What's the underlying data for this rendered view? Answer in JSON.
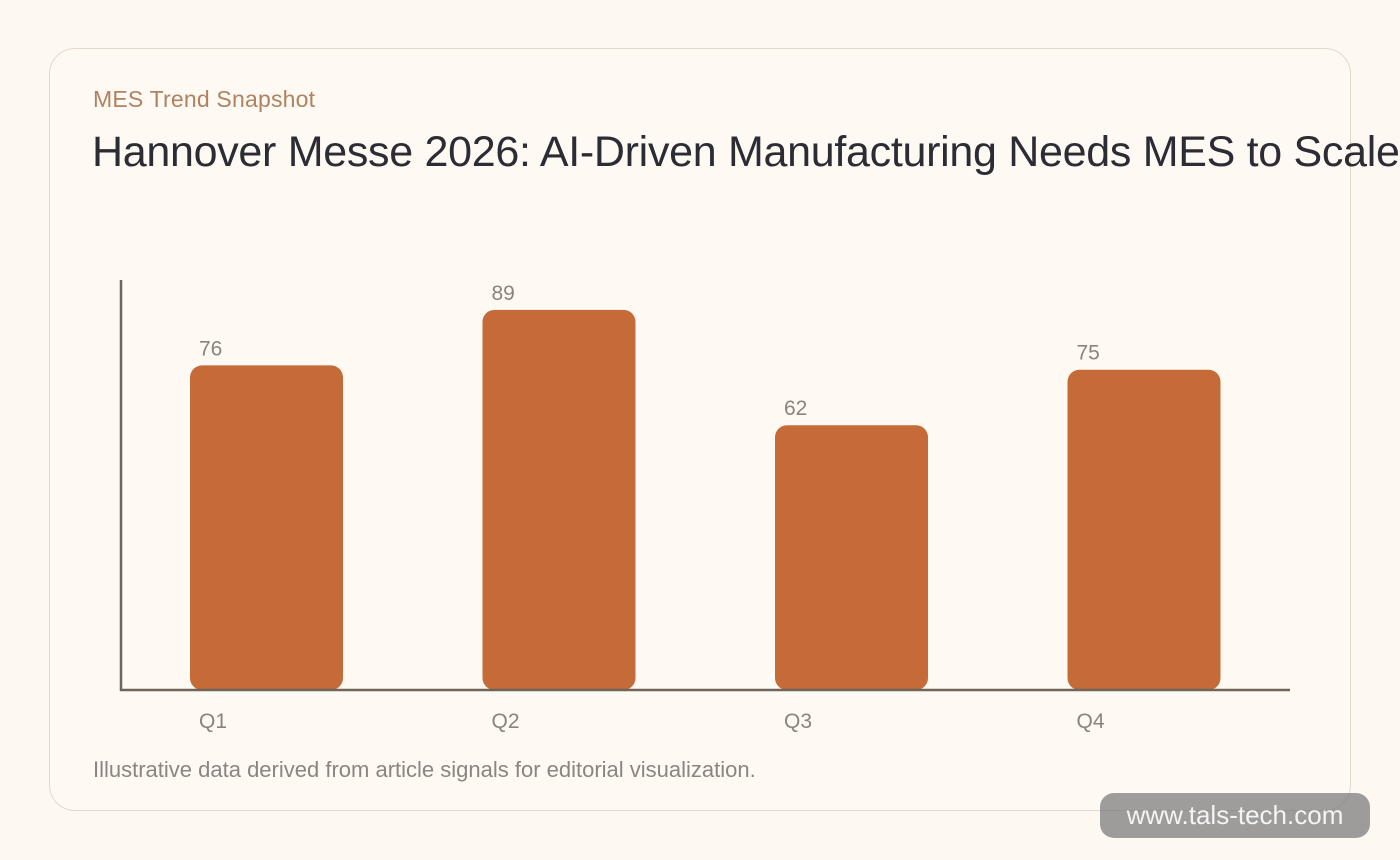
{
  "header": {
    "kicker": "MES Trend Snapshot",
    "title": "Hannover Messe 2026: AI-Driven Manufacturing Needs MES to Scale"
  },
  "chart_data": {
    "type": "bar",
    "categories": [
      "Q1",
      "Q2",
      "Q3",
      "Q4"
    ],
    "values": [
      76,
      89,
      62,
      75
    ],
    "ylim": [
      0,
      96
    ],
    "bar_color": "#c46b38",
    "axis_color": "#6f655b",
    "grid": false,
    "legend": "none"
  },
  "footnote": "Illustrative data derived from article signals for editorial visualization.",
  "watermark": "www.tals-tech.com"
}
